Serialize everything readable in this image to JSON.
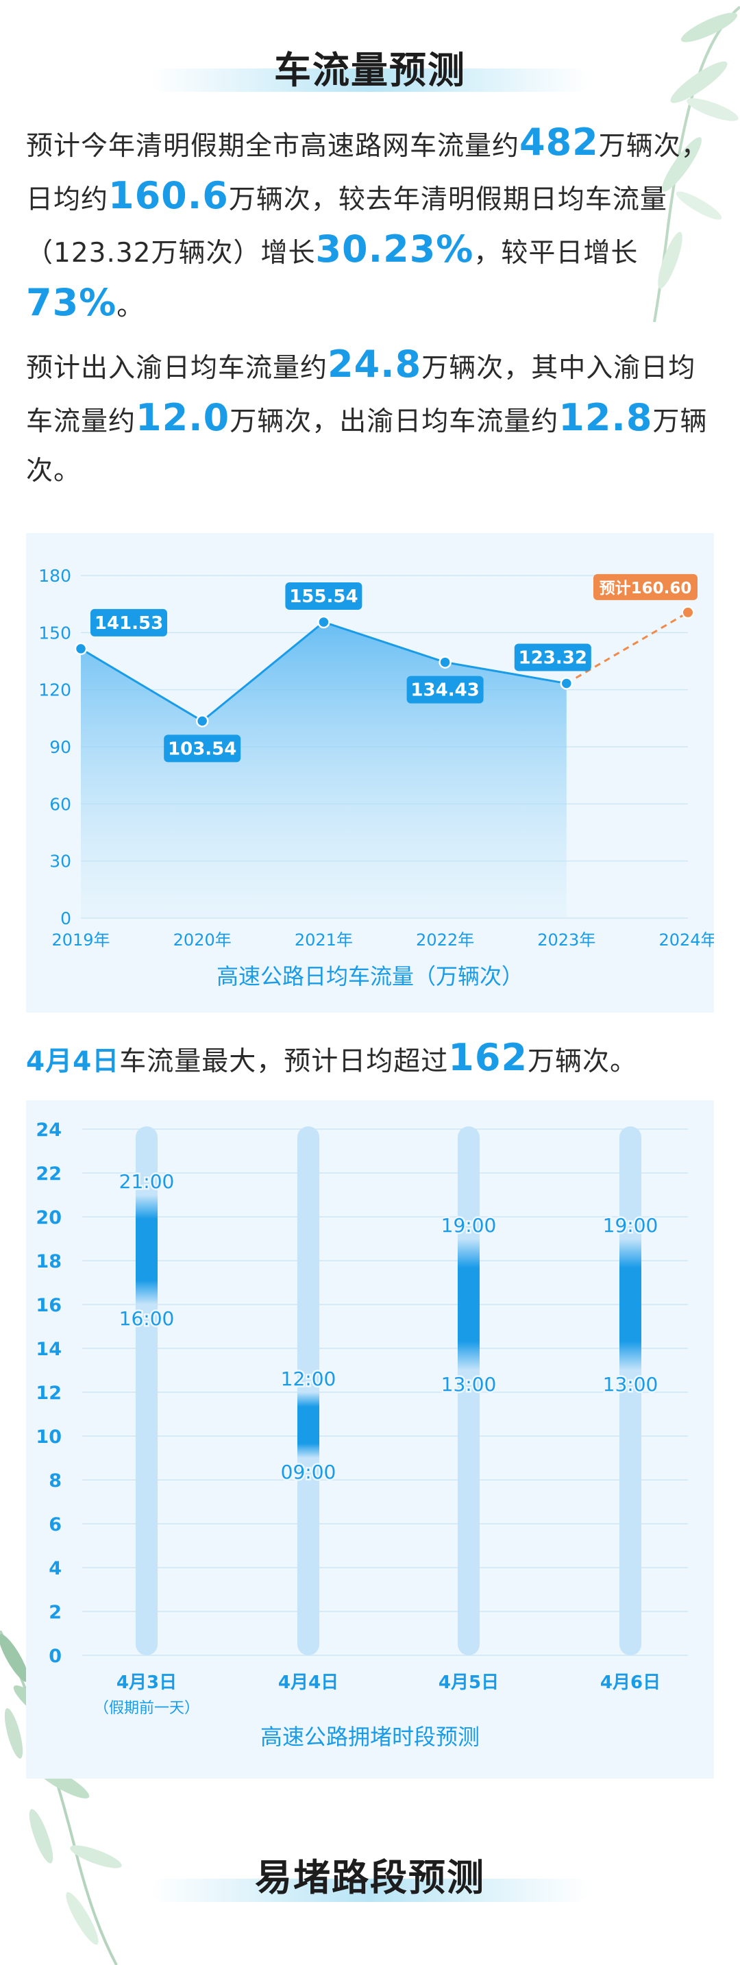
{
  "sections": {
    "traffic_title": "车流量预测",
    "congestion_title": "易堵路段预测"
  },
  "paragraph1": {
    "t1": "预计今年清明假期全市高速路网车流量约",
    "v1": "482",
    "t2": "万辆次，日均约",
    "v2": "160.6",
    "t3": "万辆次，较去年清明假期日均车流量（123.32万辆次）增长",
    "v3": "30.23%",
    "t4": "，较平日增长",
    "v4": "73%",
    "t5": "。"
  },
  "paragraph2": {
    "t1": "预计出入渝日均车流量约",
    "v1": "24.8",
    "t2": "万辆次，其中入渝日均车流量约",
    "v2": "12.0",
    "t3": "万辆次，出渝日均车流量约",
    "v3": "12.8",
    "t4": "万辆次。"
  },
  "peak": {
    "day": "4月4日",
    "t1": "车流量最大，预计日均超过",
    "value": "162",
    "t2": "万辆次。"
  },
  "colors": {
    "accent": "#1a9be8",
    "forecast": "#f08a4b",
    "band": "#c5e4fa",
    "panel": "#eef7fd"
  },
  "chart_data": [
    {
      "type": "area",
      "title": "高速公路日均车流量（万辆次）",
      "x": [
        "2019年",
        "2020年",
        "2021年",
        "2022年",
        "2023年",
        "2024年"
      ],
      "ylim": [
        0,
        180
      ],
      "yticks": [
        0,
        30,
        60,
        90,
        120,
        150,
        180
      ],
      "grid": true,
      "series": [
        {
          "values": [
            141.53,
            103.54,
            155.54,
            134.43,
            123.32,
            null
          ],
          "labels": [
            "141.53",
            "103.54",
            "155.54",
            "134.43",
            "123.32",
            ""
          ]
        }
      ],
      "forecast": {
        "x": "2024年",
        "value": 160.6,
        "label": "预计160.60",
        "from": "2023年"
      }
    },
    {
      "type": "bar",
      "title": "高速公路拥堵时段预测",
      "categories": [
        "4月3日",
        "4月4日",
        "4月5日",
        "4月6日"
      ],
      "subcategories": [
        "（假期前一天）",
        "",
        "",
        ""
      ],
      "ylim": [
        0,
        24
      ],
      "yticks": [
        0,
        2,
        4,
        6,
        8,
        10,
        12,
        14,
        16,
        18,
        20,
        22,
        24
      ],
      "grid": true,
      "ranges": [
        {
          "start": 16,
          "end": 21,
          "start_label": "16:00",
          "end_label": "21:00"
        },
        {
          "start": 9,
          "end": 12,
          "start_label": "09:00",
          "end_label": "12:00"
        },
        {
          "start": 13,
          "end": 19,
          "start_label": "13:00",
          "end_label": "19:00"
        },
        {
          "start": 13,
          "end": 19,
          "start_label": "13:00",
          "end_label": "19:00"
        }
      ]
    }
  ]
}
